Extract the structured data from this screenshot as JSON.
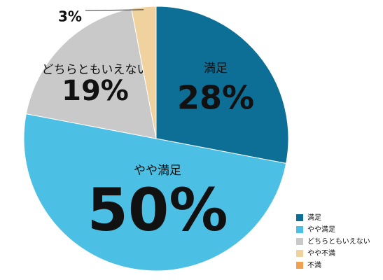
{
  "chart_data": {
    "type": "pie",
    "categories": [
      "満足",
      "やや満足",
      "どちらともいえない",
      "やや不満",
      "不満"
    ],
    "values": [
      28,
      50,
      19,
      3,
      0
    ],
    "value_labels": [
      "28%",
      "50%",
      "19%",
      "3%",
      null
    ],
    "colors": [
      "#0d6e96",
      "#4cc0e4",
      "#c9c9c9",
      "#f0d29f",
      "#f0a050"
    ],
    "legend": "bottom-right"
  }
}
